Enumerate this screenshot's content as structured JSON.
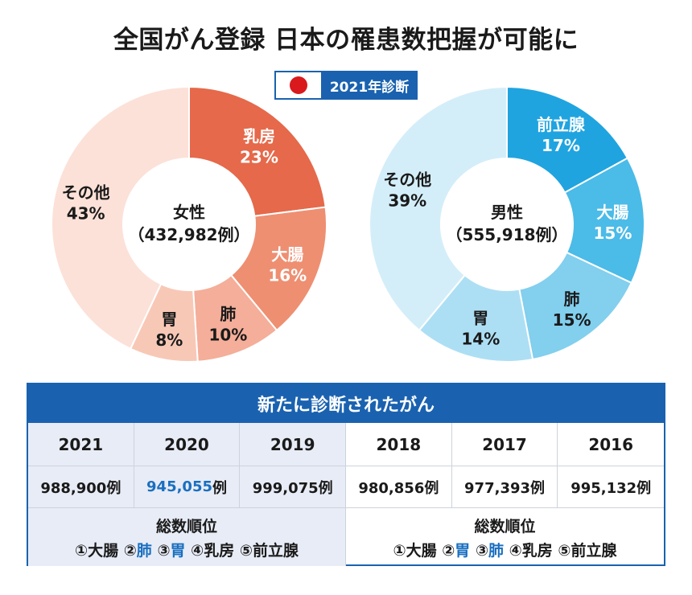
{
  "title": "全国がん登録  日本の罹患数把握が可能に",
  "badge": {
    "label": "2021年診断",
    "flag": "japan-flag"
  },
  "chart_data": [
    {
      "type": "pie",
      "center_label": [
        "女性",
        "（432,982例）"
      ],
      "slices": [
        {
          "name": "乳房",
          "value": 23,
          "label": "23%",
          "color": "#e5694a",
          "text_color": "#ffffff"
        },
        {
          "name": "大腸",
          "value": 16,
          "label": "16%",
          "color": "#ee8f72",
          "text_color": "#ffffff"
        },
        {
          "name": "肺",
          "value": 10,
          "label": "10%",
          "color": "#f4ae99",
          "text_color": "#1a1a1a"
        },
        {
          "name": "胃",
          "value": 8,
          "label": "8%",
          "color": "#f8c8b7",
          "text_color": "#1a1a1a"
        },
        {
          "name": "その他",
          "value": 43,
          "label": "43%",
          "color": "#fce1d8",
          "text_color": "#1a1a1a"
        }
      ]
    },
    {
      "type": "pie",
      "center_label": [
        "男性",
        "（555,918例）"
      ],
      "slices": [
        {
          "name": "前立腺",
          "value": 17,
          "label": "17%",
          "color": "#1fa4e0",
          "text_color": "#ffffff"
        },
        {
          "name": "大腸",
          "value": 15,
          "label": "15%",
          "color": "#4bbbe8",
          "text_color": "#ffffff"
        },
        {
          "name": "肺",
          "value": 15,
          "label": "15%",
          "color": "#82cfee",
          "text_color": "#1a1a1a"
        },
        {
          "name": "胃",
          "value": 14,
          "label": "14%",
          "color": "#addff4",
          "text_color": "#1a1a1a"
        },
        {
          "name": "その他",
          "value": 39,
          "label": "39%",
          "color": "#d4eef9",
          "text_color": "#1a1a1a"
        }
      ]
    }
  ],
  "table": {
    "header": "新たに診断されたがん",
    "years": [
      "2021",
      "2020",
      "2019",
      "2018",
      "2017",
      "2016"
    ],
    "values": [
      "988,900例",
      "945,055例",
      "999,075例",
      "980,856例",
      "977,393例",
      "995,132例"
    ],
    "highlight_value_index": 1,
    "rank_left": {
      "title": "総数順位",
      "items": [
        "①大腸",
        "②肺",
        "③胃",
        "④乳房",
        "⑤前立腺"
      ],
      "highlight": [
        1,
        2
      ]
    },
    "rank_right": {
      "title": "総数順位",
      "items": [
        "①大腸",
        "②胃",
        "③肺",
        "④乳房",
        "⑤前立腺"
      ],
      "highlight": [
        1,
        2
      ]
    },
    "colors": {
      "accent": "#1a62b0",
      "highlight_text": "#1a6fc0",
      "shaded_bg": "#e8ecf6"
    }
  }
}
